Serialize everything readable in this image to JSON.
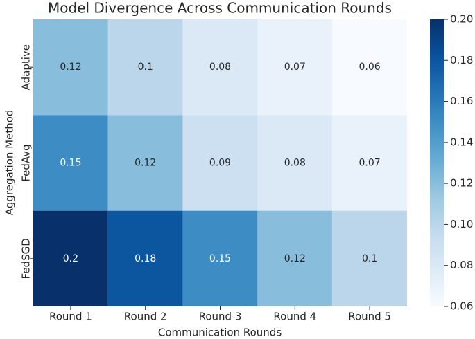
{
  "chart_data": {
    "type": "heatmap",
    "title": "Model Divergence Across Communication Rounds",
    "x_label": "Communication Rounds",
    "y_label": "Aggregation Method",
    "x_categories": [
      "Round 1",
      "Round 2",
      "Round 3",
      "Round 4",
      "Round 5"
    ],
    "y_categories": [
      "Adaptive",
      "FedAvg",
      "FedSGD"
    ],
    "values": [
      [
        0.12,
        0.1,
        0.08,
        0.07,
        0.06
      ],
      [
        0.15,
        0.12,
        0.09,
        0.08,
        0.07
      ],
      [
        0.2,
        0.18,
        0.15,
        0.12,
        0.1
      ]
    ],
    "colormap": "Blues",
    "clim": [
      0.06,
      0.2
    ],
    "cticks": [
      0.06,
      0.08,
      {
        "value": 0.1,
        "label": "0.10"
      },
      0.12,
      0.14,
      0.16,
      0.18,
      {
        "value": 0.2,
        "label": "0.20"
      }
    ]
  }
}
